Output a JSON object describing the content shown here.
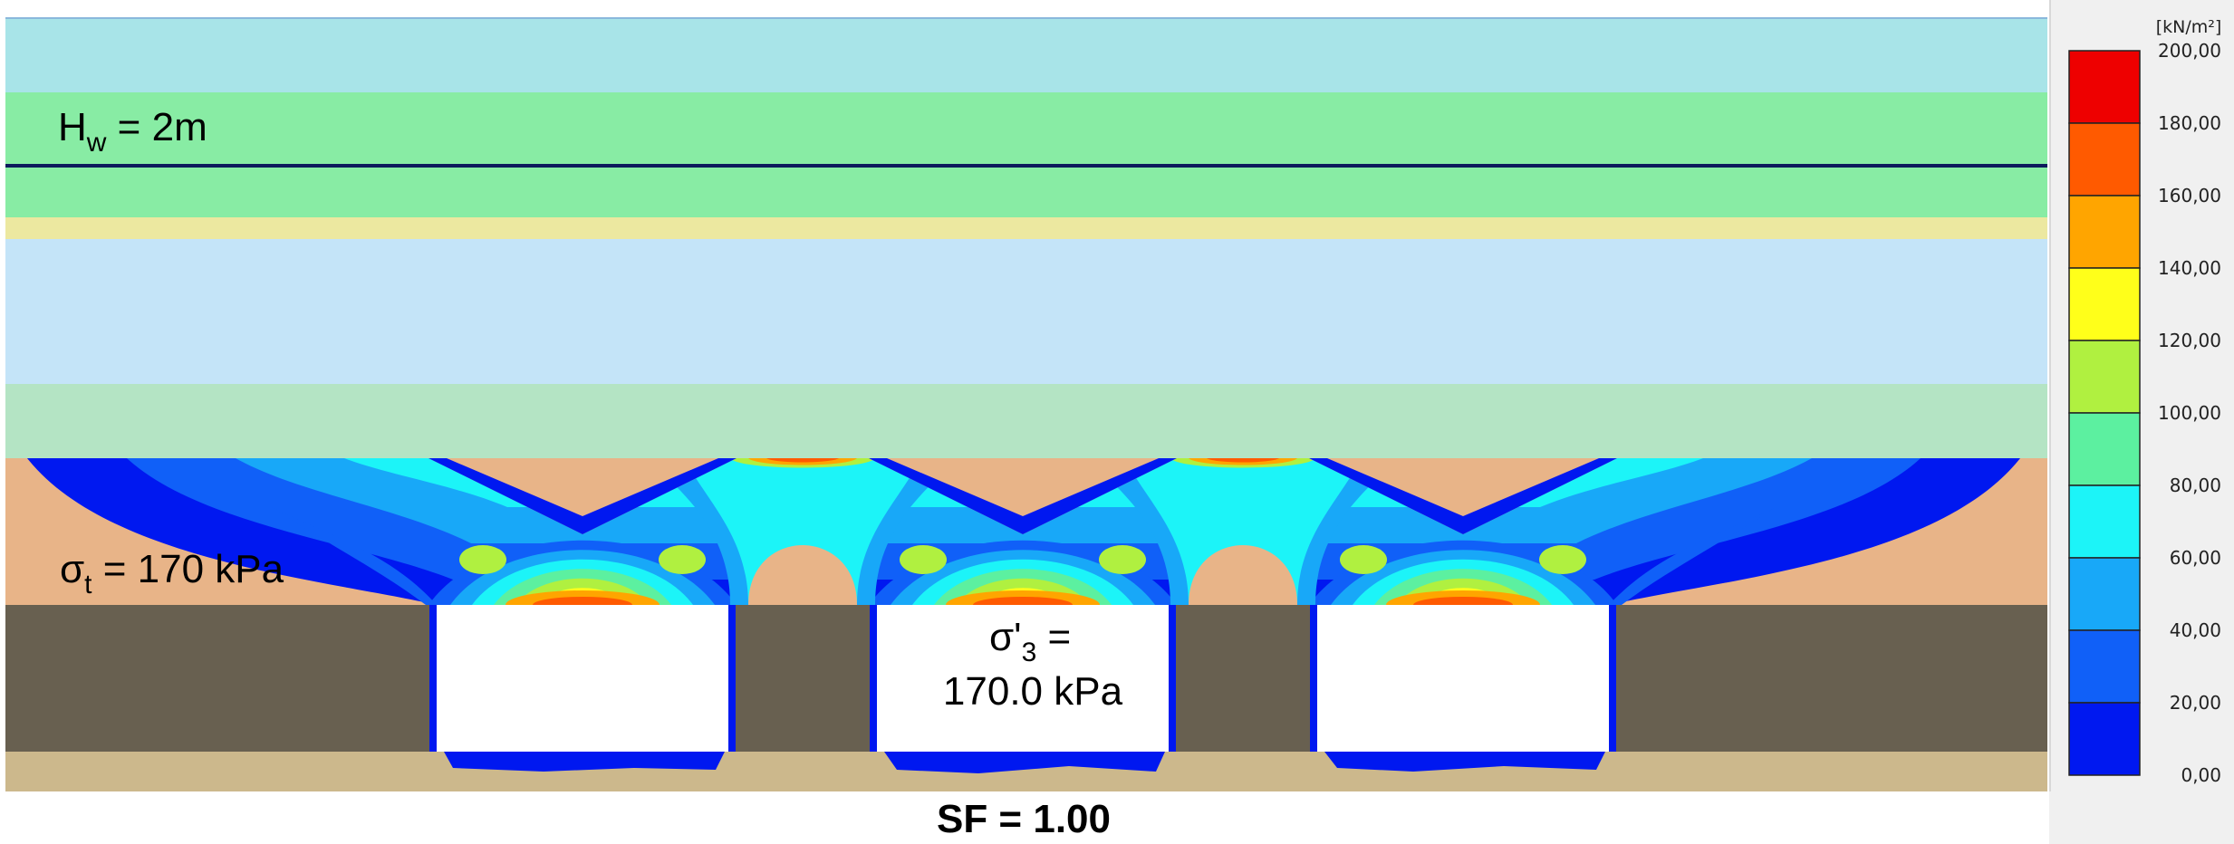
{
  "annotations": {
    "water_level_main": "H",
    "water_level_sub": "w",
    "water_level_rest": " = 2m",
    "tension_main": "σ",
    "tension_sub": "t",
    "tension_rest": " = 170 kPa",
    "stress_main": "σ'",
    "stress_sub": "3",
    "stress_rest": " =",
    "stress_value": "170.0 kPa"
  },
  "safety_factor": "SF = 1.00",
  "colorbar": {
    "unit": "[kN/m²]",
    "ticks": [
      "200,00",
      "180,00",
      "160,00",
      "140,00",
      "120,00",
      "100,00",
      "80,00",
      "60,00",
      "40,00",
      "20,00",
      "0,00"
    ],
    "band_colors": [
      "#ee0000",
      "#ff5a00",
      "#ffa500",
      "#ffff1a",
      "#b0f040",
      "#5cf0a0",
      "#1cf4f8",
      "#18a8f8",
      "#1060f8",
      "#0018f0"
    ]
  },
  "layer_colors": {
    "layer1": "#a8e4e8",
    "layer2": "#88eca4",
    "layer3": "#ece8a0",
    "layer4": "#c4e4f8",
    "layer5": "#b4e4c4",
    "layer6": "#e8b488",
    "pillar_zone": "#686050",
    "base": "#ccb88c",
    "water_line": "#0c1a5c"
  }
}
